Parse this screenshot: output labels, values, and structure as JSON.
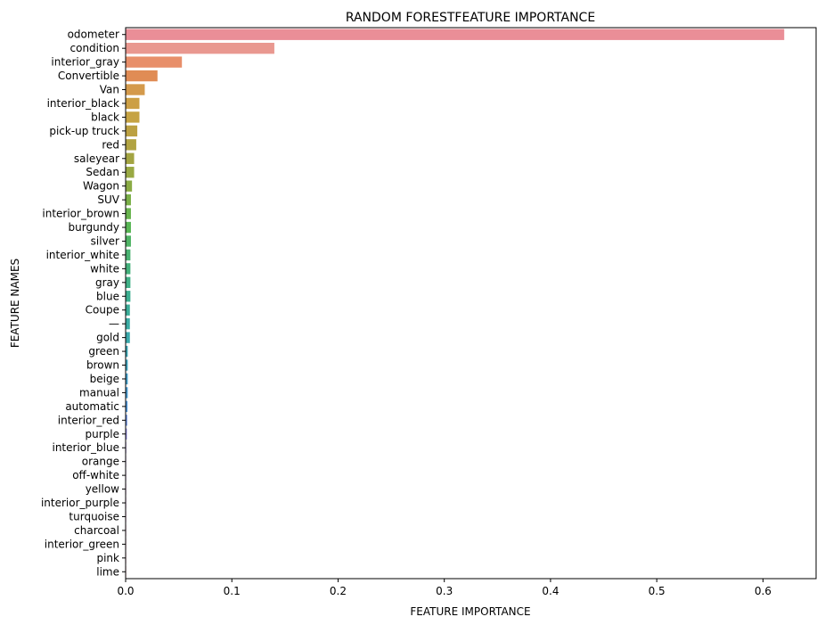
{
  "chart_data": {
    "type": "bar",
    "orientation": "horizontal",
    "title": "RANDOM FORESTFEATURE IMPORTANCE",
    "xlabel": "FEATURE IMPORTANCE",
    "ylabel": "FEATURE NAMES",
    "xlim": [
      0,
      0.65
    ],
    "xticks": [
      "0.0",
      "0.1",
      "0.2",
      "0.3",
      "0.4",
      "0.5",
      "0.6"
    ],
    "grid": false,
    "legend": "none",
    "categories": [
      "odometer",
      "condition",
      "interior_gray",
      "Convertible",
      "Van",
      "interior_black",
      "black",
      "pick-up truck",
      "red",
      "saleyear",
      "Sedan",
      "Wagon",
      "SUV",
      "interior_brown",
      "burgundy",
      "silver",
      "interior_white",
      "white",
      "gray",
      "blue",
      "Coupe",
      "—",
      "gold",
      "green",
      "brown",
      "beige",
      "manual",
      "automatic",
      "interior_red",
      "purple",
      "interior_blue",
      "orange",
      "off-white",
      "yellow",
      "interior_purple",
      "turquoise",
      "charcoal",
      "interior_green",
      "pink",
      "lime"
    ],
    "values": [
      0.62,
      0.14,
      0.053,
      0.03,
      0.018,
      0.013,
      0.013,
      0.011,
      0.01,
      0.008,
      0.008,
      0.006,
      0.005,
      0.005,
      0.005,
      0.005,
      0.0045,
      0.0045,
      0.0045,
      0.0045,
      0.004,
      0.004,
      0.004,
      0.002,
      0.002,
      0.002,
      0.002,
      0.0018,
      0.0015,
      0.0012,
      0.0006,
      0.0005,
      0.0004,
      0.0003,
      0.0003,
      0.0002,
      0.0002,
      0.0002,
      0.0001,
      0.0001
    ],
    "colors": [
      "#ea8e97",
      "#e99890",
      "#e88f6a",
      "#e08c55",
      "#d49a4c",
      "#cc9f45",
      "#c6a343",
      "#bca142",
      "#b1a342",
      "#a3a442",
      "#99a943",
      "#8aab44",
      "#7aaf48",
      "#68b34e",
      "#58b554",
      "#4fb365",
      "#49b171",
      "#43b07b",
      "#3fb086",
      "#3cae90",
      "#3bad98",
      "#3aaba3",
      "#3aa9ab",
      "#3aa6b4",
      "#3ba2be",
      "#3e9dc8",
      "#459ad1",
      "#5096d9",
      "#6a8fe0",
      "#8b86e4",
      "#a17ee6",
      "#b676e6",
      "#c66fe2",
      "#d469dd",
      "#e067d4",
      "#e66bc6",
      "#ea6eb8",
      "#ec71aa",
      "#ec7299",
      "#eb738b"
    ]
  }
}
